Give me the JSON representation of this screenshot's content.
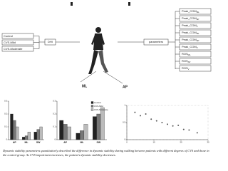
{
  "diagram": {
    "groups": [
      "Control",
      "CVS-Mild",
      "CVS-Moderate"
    ],
    "method": "DHI",
    "directions": [
      "ML",
      "AP"
    ],
    "parameters_label": "parameters",
    "parameters": [
      {
        "base": "Peak_COM",
        "sub": "ML"
      },
      {
        "base": "Peak_COM",
        "sub": "AP"
      },
      {
        "base": "Peak_COM",
        "sub": "V"
      },
      {
        "base": "Peak_COM",
        "sub": "ML"
      },
      {
        "base": "Peak_COM",
        "sub": "AP"
      },
      {
        "base": "Peak_COM",
        "sub": "V"
      },
      {
        "base": "ROS",
        "sub": "ML"
      },
      {
        "base": "ROS",
        "sub": "AP"
      },
      {
        "base": "ROS",
        "sub": "V"
      }
    ]
  },
  "chart_data": [
    {
      "type": "bar",
      "categories": [
        "AP",
        "ML",
        "SW"
      ],
      "ylim": [
        0,
        0.3
      ],
      "yticks": [
        0,
        0.1,
        0.2,
        0.3
      ],
      "series": [
        {
          "name": "Control",
          "color": "#222222",
          "values": [
            0.2,
            0.02,
            0.06
          ]
        },
        {
          "name": "CVS-Mild",
          "color": "#777777",
          "values": [
            0.15,
            0.03,
            0.08
          ]
        },
        {
          "name": "CVS-Moderate",
          "color": "#bbbbbb",
          "values": [
            0.1,
            0.06,
            0.1
          ]
        }
      ]
    },
    {
      "type": "bar",
      "categories": [
        "AP",
        "ML",
        "SW"
      ],
      "ylim": [
        0,
        0.3
      ],
      "yticks": [
        0,
        0.1,
        0.2,
        0.3
      ],
      "legend": "upper right",
      "series": [
        {
          "name": "Control",
          "color": "#222222",
          "values": [
            0.15,
            0.05,
            0.18
          ]
        },
        {
          "name": "CVS-Mild",
          "color": "#777777",
          "values": [
            0.12,
            0.07,
            0.2
          ]
        },
        {
          "name": "CVS-Moderate",
          "color": "#bbbbbb",
          "values": [
            0.1,
            0.12,
            0.25
          ]
        }
      ]
    },
    {
      "type": "scatter",
      "xlim": [
        0,
        30
      ],
      "ylim": [
        0,
        1
      ],
      "xticks": [
        0,
        10,
        20,
        30
      ],
      "yticks": [
        0,
        0.5,
        1
      ],
      "series": [
        {
          "color": "#555555",
          "x": [
            3,
            5,
            7,
            9,
            11,
            13,
            15,
            17,
            19,
            21,
            23,
            26
          ],
          "values": [
            0.8,
            0.7,
            0.75,
            0.6,
            0.55,
            0.5,
            0.45,
            0.4,
            0.42,
            0.3,
            0.28,
            0.2
          ]
        }
      ]
    }
  ],
  "caption": "Dynamic stability parameters quantitatively described the difference in dynamic stability during walking between patients with different degrees of CVS and those in the control group. As CVS impairment increases, the patient's dynamic stability decreases."
}
